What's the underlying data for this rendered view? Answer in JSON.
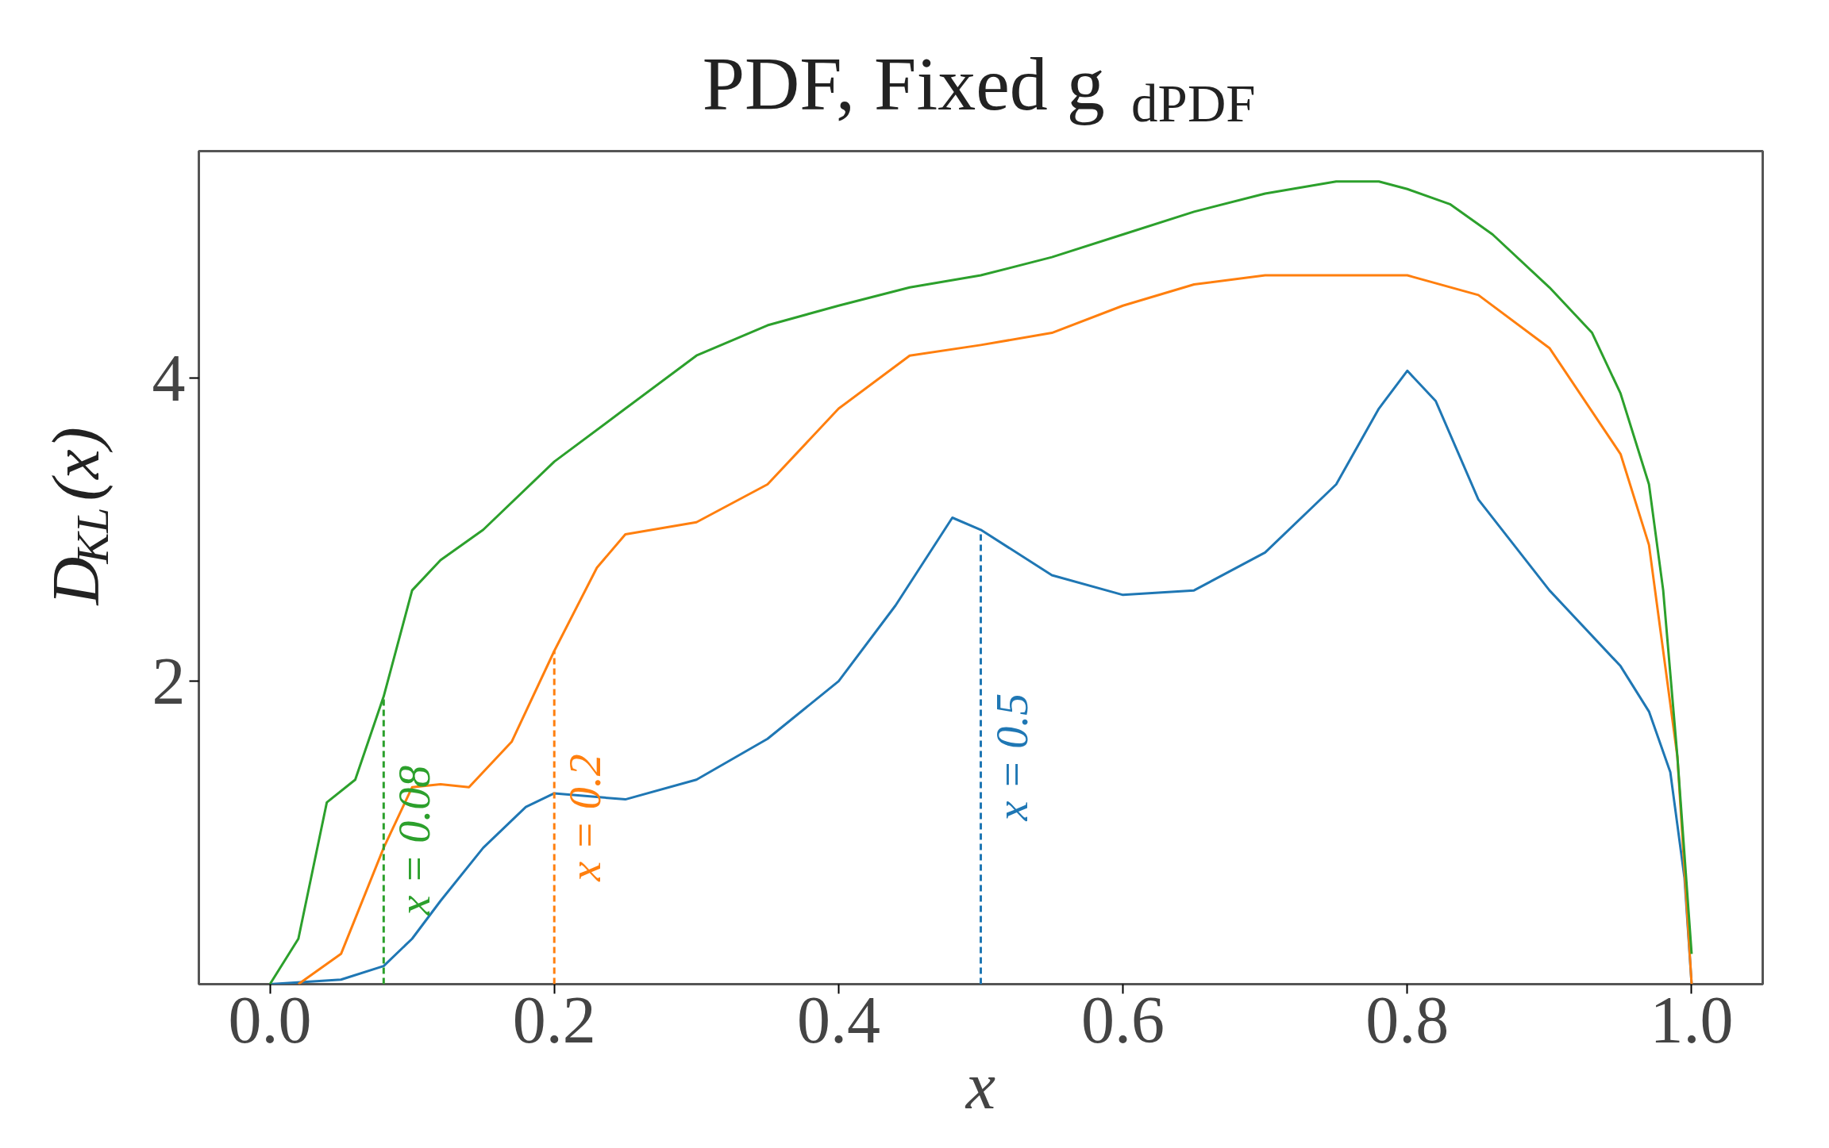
{
  "chart_data": {
    "type": "line",
    "title": "PDF, Fixed g$_{dPDF}$",
    "xlabel": "x",
    "ylabel": "D$_{KL}$(x)",
    "xlim": [
      -0.05,
      1.05
    ],
    "ylim": [
      0,
      5.5
    ],
    "xticks": [
      {
        "value": 0,
        "label": "0.0"
      },
      0.2,
      0.4,
      0.6,
      0.8,
      {
        "value": 1,
        "label": "1.0"
      }
    ],
    "yticks": [
      2,
      4
    ],
    "grid": false,
    "line_style": "solid",
    "marker": "none",
    "series": [
      {
        "color": "#1f77b4",
        "x": [
          0.0,
          0.05,
          0.08,
          0.1,
          0.12,
          0.15,
          0.18,
          0.2,
          0.25,
          0.3,
          0.35,
          0.4,
          0.44,
          0.48,
          0.5,
          0.55,
          0.6,
          0.65,
          0.7,
          0.75,
          0.78,
          0.8,
          0.82,
          0.85,
          0.9,
          0.95,
          0.97,
          0.985,
          0.995,
          1.0
        ],
        "values": [
          0,
          0.03,
          0.12,
          0.3,
          0.55,
          0.9,
          1.17,
          1.26,
          1.22,
          1.35,
          1.62,
          2.0,
          2.5,
          3.08,
          3.0,
          2.7,
          2.57,
          2.6,
          2.85,
          3.3,
          3.8,
          4.05,
          3.85,
          3.2,
          2.6,
          2.1,
          1.8,
          1.4,
          0.7,
          0
        ]
      },
      {
        "color": "#ff7f0e",
        "x": [
          0.02,
          0.05,
          0.08,
          0.1,
          0.12,
          0.14,
          0.17,
          0.2,
          0.23,
          0.25,
          0.3,
          0.35,
          0.4,
          0.45,
          0.5,
          0.55,
          0.6,
          0.65,
          0.7,
          0.8,
          0.85,
          0.9,
          0.95,
          0.97,
          0.99,
          1.0
        ],
        "values": [
          0,
          0.2,
          0.9,
          1.3,
          1.32,
          1.3,
          1.6,
          2.2,
          2.75,
          2.97,
          3.05,
          3.3,
          3.8,
          4.15,
          4.22,
          4.3,
          4.48,
          4.62,
          4.68,
          4.68,
          4.55,
          4.2,
          3.5,
          2.9,
          1.5,
          0
        ]
      },
      {
        "color": "#2ca02c",
        "x": [
          0.0,
          0.02,
          0.04,
          0.06,
          0.08,
          0.1,
          0.12,
          0.15,
          0.2,
          0.25,
          0.3,
          0.35,
          0.4,
          0.45,
          0.5,
          0.55,
          0.6,
          0.65,
          0.7,
          0.75,
          0.78,
          0.8,
          0.83,
          0.86,
          0.9,
          0.93,
          0.95,
          0.97,
          0.98,
          0.99,
          1.0
        ],
        "values": [
          0,
          0.3,
          1.2,
          1.35,
          1.9,
          2.6,
          2.8,
          3.0,
          3.45,
          3.8,
          4.15,
          4.35,
          4.48,
          4.6,
          4.68,
          4.8,
          4.95,
          5.1,
          5.22,
          5.3,
          5.3,
          5.25,
          5.15,
          4.95,
          4.6,
          4.3,
          3.9,
          3.3,
          2.6,
          1.5,
          0.2
        ]
      }
    ],
    "ref_lines": [
      {
        "axis": "x",
        "value": 0.08,
        "label": "x = 0.08",
        "color": "#2ca02c",
        "line_style": "dashed"
      },
      {
        "axis": "x",
        "value": 0.2,
        "label": "x = 0.2",
        "color": "#ff7f0e",
        "line_style": "dashed"
      },
      {
        "axis": "x",
        "value": 0.5,
        "label": "x = 0.5",
        "color": "#1f77b4",
        "line_style": "dashed"
      }
    ]
  }
}
